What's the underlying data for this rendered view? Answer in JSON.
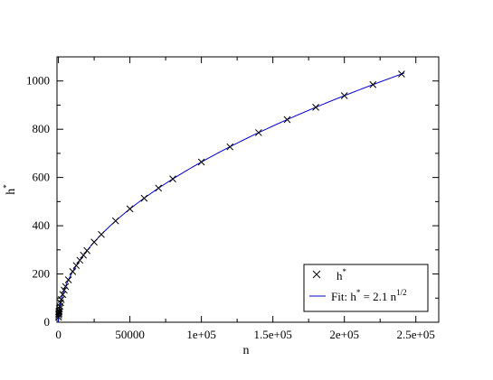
{
  "chart_data": {
    "type": "scatter",
    "xlabel": "n",
    "ylabel": "h*",
    "xlim": [
      -1000,
      266000
    ],
    "ylim": [
      0,
      1100
    ],
    "x_ticks": [
      0,
      50000,
      100000,
      150000,
      200000,
      250000
    ],
    "x_tick_labels": [
      "0",
      "50000",
      "1e+05",
      "1.5e+05",
      "2e+05",
      "2.5e+05"
    ],
    "y_ticks": [
      0,
      200,
      400,
      600,
      800,
      1000
    ],
    "y_tick_labels": [
      "0",
      "200",
      "400",
      "600",
      "800",
      "1000"
    ],
    "grid": false,
    "legend_position": "bottom-right",
    "series": [
      {
        "name": "h*",
        "marker": "x",
        "color": "#000000",
        "points": [
          [
            100,
            21
          ],
          [
            200,
            30
          ],
          [
            300,
            36
          ],
          [
            400,
            42
          ],
          [
            500,
            47
          ],
          [
            700,
            56
          ],
          [
            1000,
            66
          ],
          [
            1500,
            81
          ],
          [
            2000,
            94
          ],
          [
            3000,
            115
          ],
          [
            4000,
            133
          ],
          [
            5000,
            148
          ],
          [
            7000,
            176
          ],
          [
            10000,
            210
          ],
          [
            12500,
            235
          ],
          [
            15000,
            257
          ],
          [
            17500,
            278
          ],
          [
            20000,
            297
          ],
          [
            25000,
            332
          ],
          [
            30000,
            364
          ],
          [
            40000,
            420
          ],
          [
            50000,
            470
          ],
          [
            60000,
            514
          ],
          [
            70000,
            556
          ],
          [
            80000,
            594
          ],
          [
            100000,
            664
          ],
          [
            120000,
            727
          ],
          [
            140000,
            786
          ],
          [
            160000,
            840
          ],
          [
            180000,
            891
          ],
          [
            200000,
            939
          ],
          [
            220000,
            985
          ],
          [
            240000,
            1029
          ]
        ]
      },
      {
        "name": "Fit: h* = 2.1 n^1/2",
        "type": "line",
        "color": "#0000cc",
        "formula": "h* = 2.1 n^1/2"
      }
    ],
    "legend": {
      "marker_label_main": "h",
      "marker_label_sup": "*",
      "fit_label_prefix": "Fit: h",
      "fit_label_sup1": "*",
      "fit_label_mid": " = 2.1 n",
      "fit_label_sup2": "1/2"
    }
  }
}
